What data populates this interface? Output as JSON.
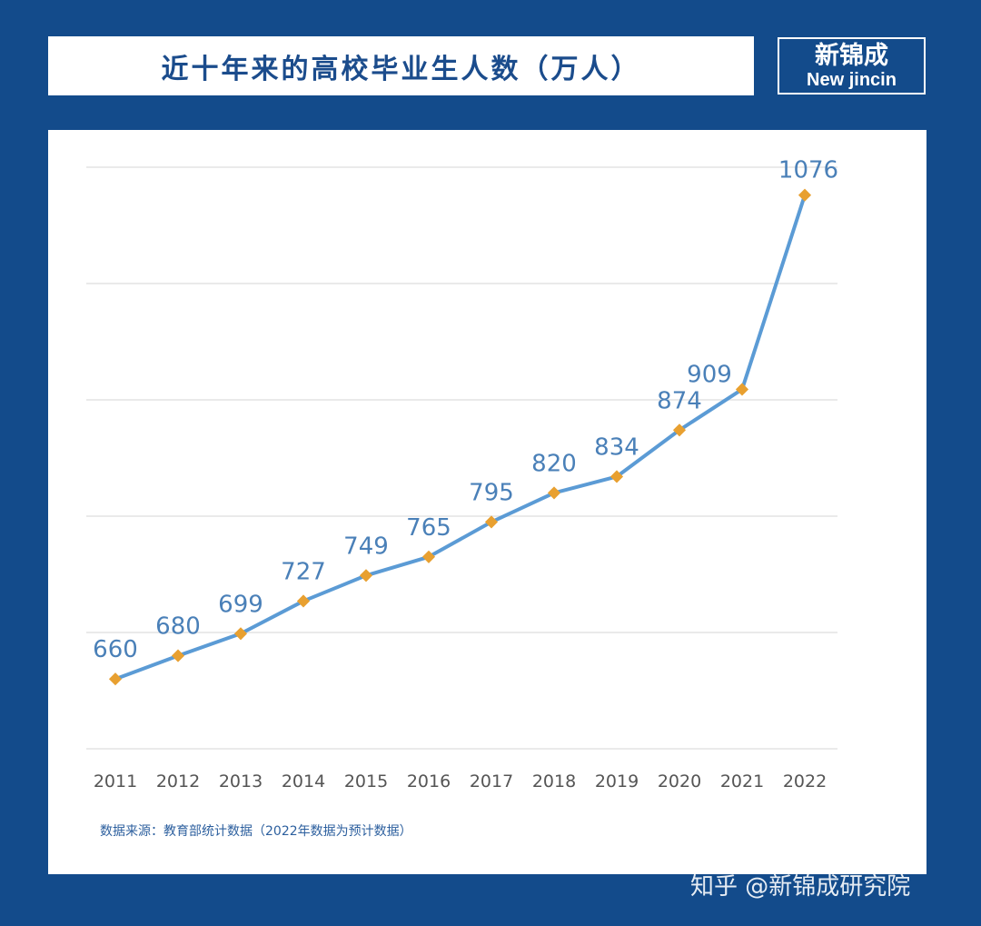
{
  "header": {
    "title": "近十年来的高校毕业生人数（万人）"
  },
  "logo": {
    "cn": "新锦成",
    "en": "New jincin"
  },
  "source": "数据来源：教育部统计数据（2022年数据为预计数据）",
  "watermark": "知乎 @新锦成研究院",
  "colors": {
    "background": "#134b8b",
    "line": "#5b9bd5",
    "marker": "#e8a030",
    "label": "#4a80b8",
    "grid": "#e3e3e3"
  },
  "chart_data": {
    "type": "line",
    "title": "近十年来的高校毕业生人数（万人）",
    "categories": [
      "2011",
      "2012",
      "2013",
      "2014",
      "2015",
      "2016",
      "2017",
      "2018",
      "2019",
      "2020",
      "2021",
      "2022"
    ],
    "values": [
      660,
      680,
      699,
      727,
      749,
      765,
      795,
      820,
      834,
      874,
      909,
      1076
    ],
    "ylim": [
      600,
      1100
    ],
    "grid": true,
    "ytick_step": 100,
    "data_labels": true
  }
}
